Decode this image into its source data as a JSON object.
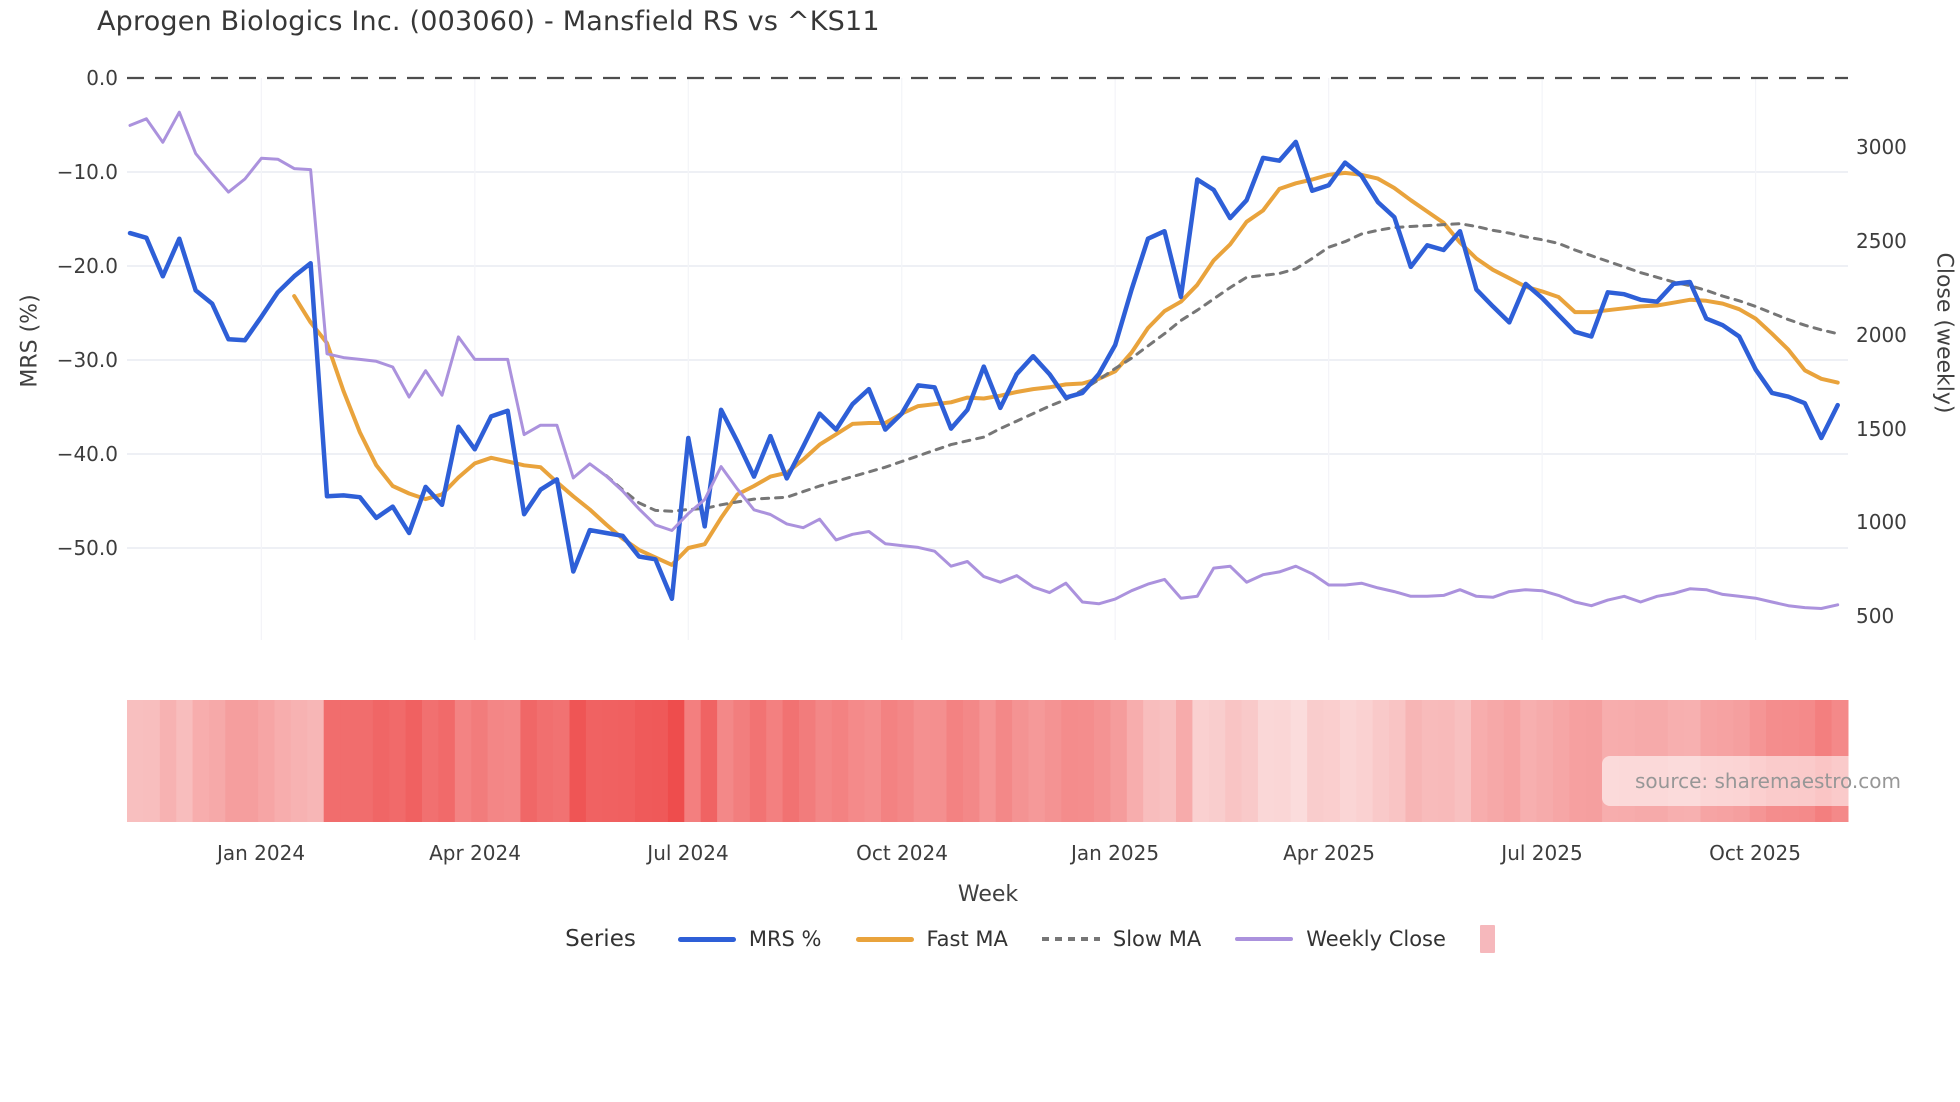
{
  "chart_data": {
    "type": "line",
    "title": "Aprogen Biologics Inc. (003060) - Mansfield RS vs ^KS11",
    "xlabel": "Week",
    "source": "source: sharemaestro.com",
    "x_axis": {
      "n_weeks": 105,
      "tick_weeks": [
        8,
        21,
        34,
        47,
        60,
        73,
        86,
        99
      ],
      "tick_labels": [
        "Jan 2024",
        "Apr 2024",
        "Jul 2024",
        "Oct 2024",
        "Jan 2025",
        "Apr 2025",
        "Jul 2025",
        "Oct 2025"
      ]
    },
    "y_left": {
      "label": "MRS (%)",
      "tick_values": [
        0,
        -10,
        -20,
        -30,
        -40,
        -50
      ],
      "tick_labels": [
        "0.0",
        "−10.0",
        "−20.0",
        "−30.0",
        "−40.0",
        "−50.0"
      ],
      "zero_reference_line": 0
    },
    "y_right": {
      "label": "Close (weekly)",
      "tick_values": [
        3000,
        2500,
        2000,
        1500,
        1000,
        500
      ],
      "tick_labels": [
        "3000",
        "2500",
        "2000",
        "1500",
        "1000",
        "500"
      ]
    },
    "legend": {
      "title": "Series",
      "items": [
        {
          "label": "MRS %",
          "color": "#2e5fd7",
          "style": "solid"
        },
        {
          "label": "Fast MA",
          "color": "#e9a33c",
          "style": "solid"
        },
        {
          "label": "Slow MA",
          "color": "#767676",
          "style": "dotted"
        },
        {
          "label": "Weekly Close",
          "color": "#ab92dd",
          "style": "thin"
        },
        {
          "label": "",
          "color": "#f6b8bc",
          "style": "square"
        }
      ]
    },
    "series": [
      {
        "name": "MRS %",
        "axis": "left",
        "color": "#2e5fd7",
        "dash": null,
        "width": 4.5,
        "values": [
          -16.5,
          -17.0,
          -21.1,
          -17.1,
          -22.6,
          -24.0,
          -27.8,
          -27.9,
          -25.4,
          -22.8,
          -21.1,
          -19.7,
          -44.5,
          -44.4,
          -44.6,
          -46.8,
          -45.6,
          -48.4,
          -43.5,
          -45.4,
          -37.1,
          -39.5,
          -36.0,
          -35.4,
          -46.4,
          -43.8,
          -42.7,
          -52.5,
          -48.1,
          -48.4,
          -48.7,
          -50.9,
          -51.2,
          -55.4,
          -38.3,
          -47.7,
          -35.3,
          -38.7,
          -42.4,
          -38.1,
          -42.6,
          -39.2,
          -35.7,
          -37.4,
          -34.7,
          -33.1,
          -37.4,
          -35.7,
          -32.7,
          -32.9,
          -37.3,
          -35.3,
          -30.7,
          -35.1,
          -31.5,
          -29.6,
          -31.5,
          -34.0,
          -33.5,
          -31.5,
          -28.4,
          -22.5,
          -17.1,
          -16.3,
          -23.3,
          -10.8,
          -11.9,
          -14.9,
          -13.0,
          -8.5,
          -8.8,
          -6.8,
          -12.0,
          -11.4,
          -9.0,
          -10.4,
          -13.2,
          -14.8,
          -20.1,
          -17.8,
          -18.3,
          -16.3,
          -22.5,
          -24.3,
          -26.0,
          -21.9,
          -23.4,
          -25.2,
          -27.0,
          -27.5,
          -22.8,
          -23.0,
          -23.6,
          -23.8,
          -21.9,
          -21.7,
          -25.6,
          -26.3,
          -27.5,
          -31.0,
          -33.5,
          -33.9,
          -34.6,
          -38.3,
          -34.8
        ]
      },
      {
        "name": "Fast MA",
        "axis": "left",
        "color": "#e9a33c",
        "dash": null,
        "width": 4,
        "values": [
          null,
          null,
          null,
          null,
          null,
          null,
          null,
          null,
          null,
          null,
          -23.2,
          -26.0,
          -28.2,
          -33.3,
          -37.7,
          -41.2,
          -43.4,
          -44.2,
          -44.8,
          -44.3,
          -42.5,
          -41.0,
          -40.4,
          -40.8,
          -41.2,
          -41.4,
          -43.0,
          -44.5,
          -45.9,
          -47.5,
          -49.0,
          -50.2,
          -51.0,
          -51.8,
          -50.0,
          -49.6,
          -46.8,
          -44.3,
          -43.4,
          -42.4,
          -42.0,
          -40.6,
          -39.0,
          -37.9,
          -36.8,
          -36.7,
          -36.7,
          -35.7,
          -34.9,
          -34.7,
          -34.5,
          -34.0,
          -34.1,
          -33.8,
          -33.4,
          -33.1,
          -32.9,
          -32.6,
          -32.5,
          -32.0,
          -31.2,
          -29.2,
          -26.6,
          -24.8,
          -23.8,
          -22.0,
          -19.4,
          -17.7,
          -15.3,
          -14.1,
          -11.8,
          -11.2,
          -10.8,
          -10.3,
          -10.1,
          -10.3,
          -10.7,
          -11.7,
          -13.0,
          -14.2,
          -15.4,
          -17.5,
          -19.2,
          -20.4,
          -21.3,
          -22.2,
          -22.7,
          -23.3,
          -24.9,
          -24.9,
          -24.7,
          -24.5,
          -24.3,
          -24.2,
          -23.9,
          -23.6,
          -23.7,
          -24.0,
          -24.6,
          -25.6,
          -27.2,
          -28.9,
          -31.1,
          -32.0,
          -32.4
        ]
      },
      {
        "name": "Slow MA",
        "axis": "left",
        "color": "#767676",
        "dash": "7 7",
        "width": 3,
        "values": [
          null,
          null,
          null,
          null,
          null,
          null,
          null,
          null,
          null,
          null,
          null,
          null,
          null,
          null,
          null,
          null,
          null,
          null,
          null,
          null,
          null,
          null,
          null,
          null,
          null,
          null,
          null,
          null,
          null,
          -42.3,
          -43.8,
          -45.2,
          -46.0,
          -46.1,
          -45.9,
          -45.8,
          -45.4,
          -45.1,
          -44.8,
          -44.7,
          -44.6,
          -44.0,
          -43.4,
          -42.9,
          -42.4,
          -41.9,
          -41.4,
          -40.8,
          -40.2,
          -39.6,
          -39.0,
          -38.6,
          -38.2,
          -37.3,
          -36.5,
          -35.7,
          -34.9,
          -34.2,
          -33.2,
          -32.1,
          -30.9,
          -29.8,
          -28.5,
          -27.2,
          -25.8,
          -24.7,
          -23.5,
          -22.3,
          -21.2,
          -21.0,
          -20.8,
          -20.3,
          -19.2,
          -18.0,
          -17.4,
          -16.6,
          -16.2,
          -15.9,
          -15.8,
          -15.7,
          -15.6,
          -15.5,
          -15.8,
          -16.2,
          -16.5,
          -16.9,
          -17.2,
          -17.6,
          -18.3,
          -18.9,
          -19.5,
          -20.1,
          -20.7,
          -21.2,
          -21.7,
          -22.1,
          -22.6,
          -23.2,
          -23.7,
          -24.3,
          -25.0,
          -25.7,
          -26.3,
          -26.8,
          -27.2
        ]
      },
      {
        "name": "Weekly Close",
        "axis": "right",
        "color": "#ab92dd",
        "dash": null,
        "width": 3,
        "values": [
          3115,
          3150,
          3025,
          3185,
          2965,
          2860,
          2760,
          2830,
          2940,
          2935,
          2885,
          2880,
          1900,
          1880,
          1870,
          1860,
          1830,
          1670,
          1810,
          1680,
          1990,
          1870,
          1870,
          1870,
          1470,
          1520,
          1520,
          1240,
          1315,
          1250,
          1170,
          1075,
          990,
          960,
          1050,
          1125,
          1300,
          1180,
          1070,
          1045,
          995,
          975,
          1020,
          910,
          940,
          955,
          890,
          880,
          870,
          850,
          770,
          795,
          715,
          685,
          720,
          660,
          630,
          680,
          580,
          570,
          595,
          640,
          675,
          700,
          600,
          610,
          760,
          770,
          685,
          725,
          740,
          770,
          730,
          670,
          670,
          680,
          655,
          635,
          610,
          610,
          615,
          645,
          610,
          605,
          635,
          645,
          640,
          615,
          580,
          560,
          590,
          610,
          580,
          610,
          625,
          650,
          645,
          620,
          610,
          600,
          580,
          560,
          550,
          545,
          565
        ]
      }
    ],
    "heatmap_strip": {
      "maps": "red intensity encodes abs(MRS %) per week",
      "color_light": "#fbdede",
      "color_dark": "#ee4b4b",
      "abs_range": [
        6,
        56
      ]
    }
  }
}
